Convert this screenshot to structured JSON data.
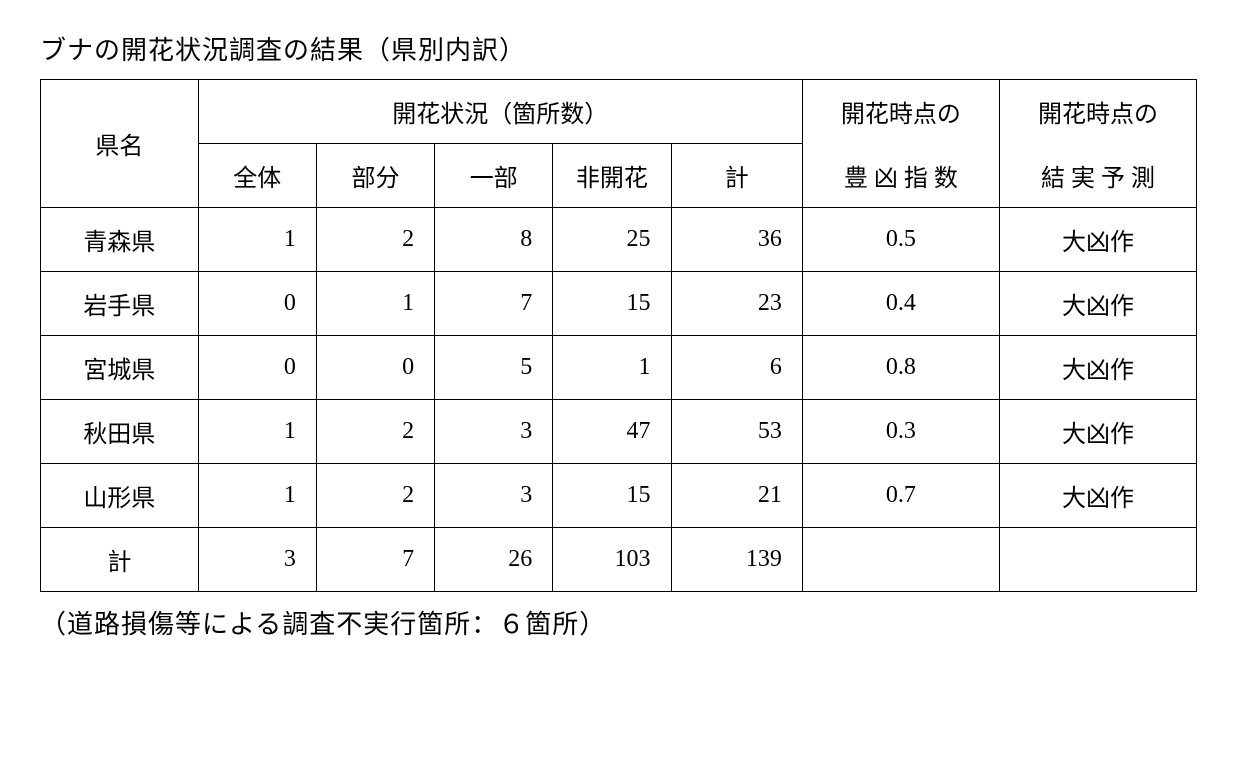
{
  "title": "ブナの開花状況調査の結果（県別内訳）",
  "headers": {
    "prefecture": "県名",
    "flowering_group": "開花状況（箇所数）",
    "index": "開花時点の",
    "index2": "豊 凶 指 数",
    "forecast": "開花時点の",
    "forecast2": "結 実 予 測",
    "full": "全体",
    "partial": "部分",
    "some": "一部",
    "none": "非開花",
    "total": "計"
  },
  "rows": [
    {
      "name": "青森県",
      "full": "1",
      "partial": "2",
      "some": "8",
      "none": "25",
      "total": "36",
      "index": "0.5",
      "forecast": "大凶作"
    },
    {
      "name": "岩手県",
      "full": "0",
      "partial": "1",
      "some": "7",
      "none": "15",
      "total": "23",
      "index": "0.4",
      "forecast": "大凶作"
    },
    {
      "name": "宮城県",
      "full": "0",
      "partial": "0",
      "some": "5",
      "none": "1",
      "total": "6",
      "index": "0.8",
      "forecast": "大凶作"
    },
    {
      "name": "秋田県",
      "full": "1",
      "partial": "2",
      "some": "3",
      "none": "47",
      "total": "53",
      "index": "0.3",
      "forecast": "大凶作"
    },
    {
      "name": "山形県",
      "full": "1",
      "partial": "2",
      "some": "3",
      "none": "15",
      "total": "21",
      "index": "0.7",
      "forecast": "大凶作"
    }
  ],
  "totals": {
    "name": "計",
    "full": "3",
    "partial": "7",
    "some": "26",
    "none": "103",
    "total": "139",
    "index": "",
    "forecast": ""
  },
  "note": "（道路損傷等による調査不実行箇所：６箇所）",
  "styling": {
    "background_color": "#ffffff",
    "text_color": "#000000",
    "border_color": "#000000",
    "title_fontsize": 26,
    "cell_fontsize": 24,
    "font_family": "MS Mincho"
  }
}
